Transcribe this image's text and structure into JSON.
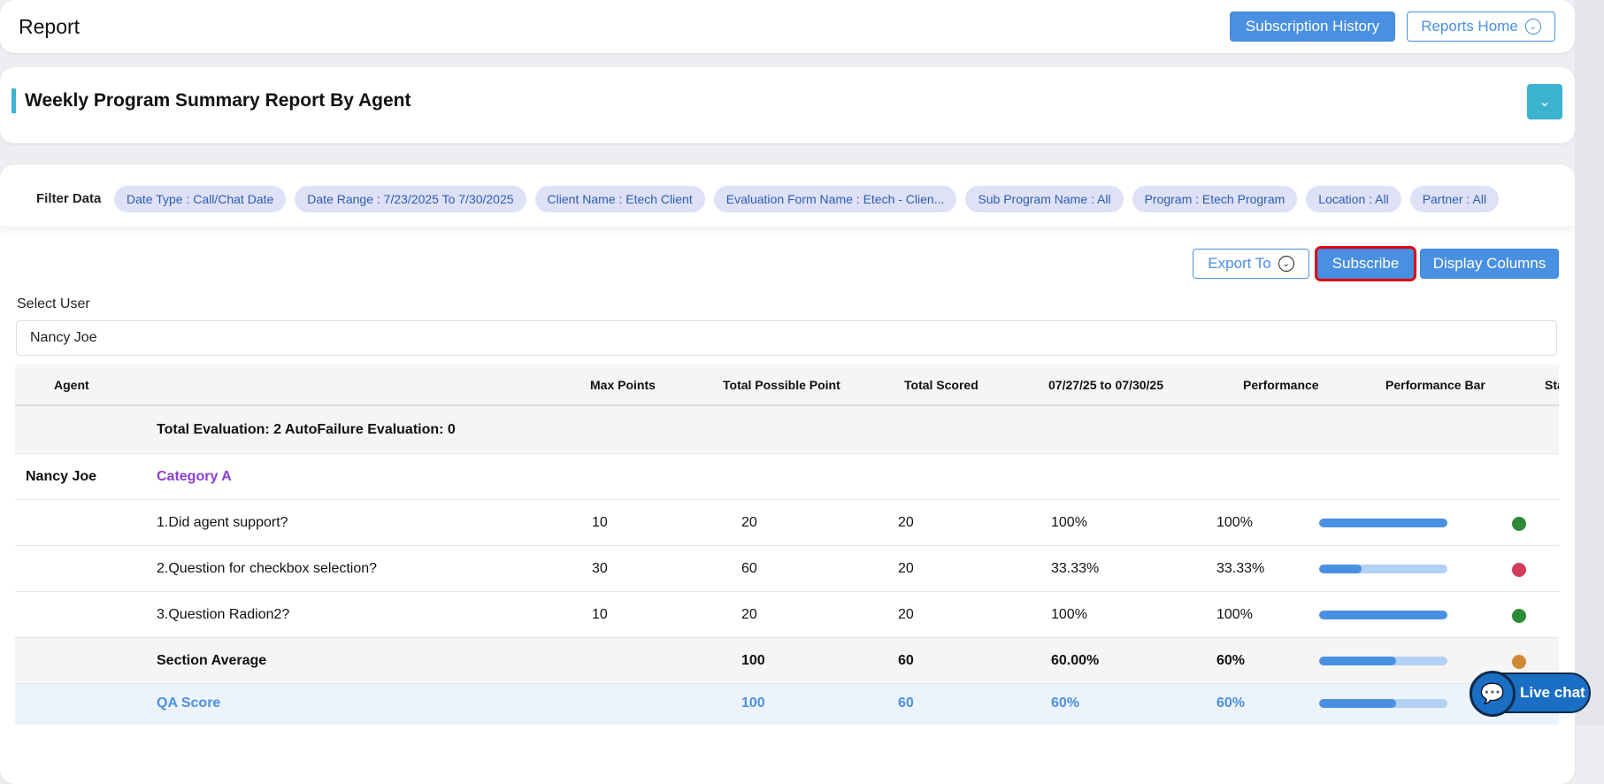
{
  "header": {
    "title": "Report",
    "subscription_history": "Subscription History",
    "reports_home": "Reports Home"
  },
  "section": {
    "title": "Weekly Program Summary Report By Agent"
  },
  "filters": {
    "label": "Filter Data",
    "chips": [
      "Date Type : Call/Chat Date",
      "Date Range : 7/23/2025 To 7/30/2025",
      "Client Name : Etech Client",
      "Evaluation Form Name : Etech - Clien...",
      "Sub Program Name : All",
      "Program : Etech Program",
      "Location : All",
      "Partner : All"
    ]
  },
  "toolbar": {
    "export": "Export To",
    "subscribe": "Subscribe",
    "display_columns": "Display Columns"
  },
  "user": {
    "label": "Select User",
    "value": "Nancy Joe"
  },
  "table": {
    "headers": [
      "Agent",
      "Max Points",
      "Total Possible Point",
      "Total Scored",
      "07/27/25 to 07/30/25",
      "Performance",
      "Performance Bar",
      "Sta"
    ],
    "summary": "Total Evaluation: 2 AutoFailure Evaluation: 0",
    "agent": "Nancy Joe",
    "category": "Category A",
    "rows": [
      {
        "q": "1.Did agent support?",
        "max": "10",
        "possible": "20",
        "scored": "20",
        "period": "100%",
        "perf": "100%",
        "bar": 100,
        "status": "#2e8b3a"
      },
      {
        "q": "2.Question for checkbox selection?",
        "max": "30",
        "possible": "60",
        "scored": "20",
        "period": "33.33%",
        "perf": "33.33%",
        "bar": 33.33,
        "status": "#d23c5a"
      },
      {
        "q": "3.Question Radion2?",
        "max": "10",
        "possible": "20",
        "scored": "20",
        "period": "100%",
        "perf": "100%",
        "bar": 100,
        "status": "#2e8b3a"
      }
    ],
    "section_avg": {
      "label": "Section Average",
      "possible": "100",
      "scored": "60",
      "period": "60.00%",
      "perf": "60%",
      "bar": 60,
      "status": "#d08a35"
    },
    "qa": {
      "label": "QA Score",
      "possible": "100",
      "scored": "60",
      "period": "60%",
      "perf": "60%",
      "bar": 60,
      "status": "#d08a35"
    }
  },
  "chat": {
    "label": "Live chat"
  }
}
